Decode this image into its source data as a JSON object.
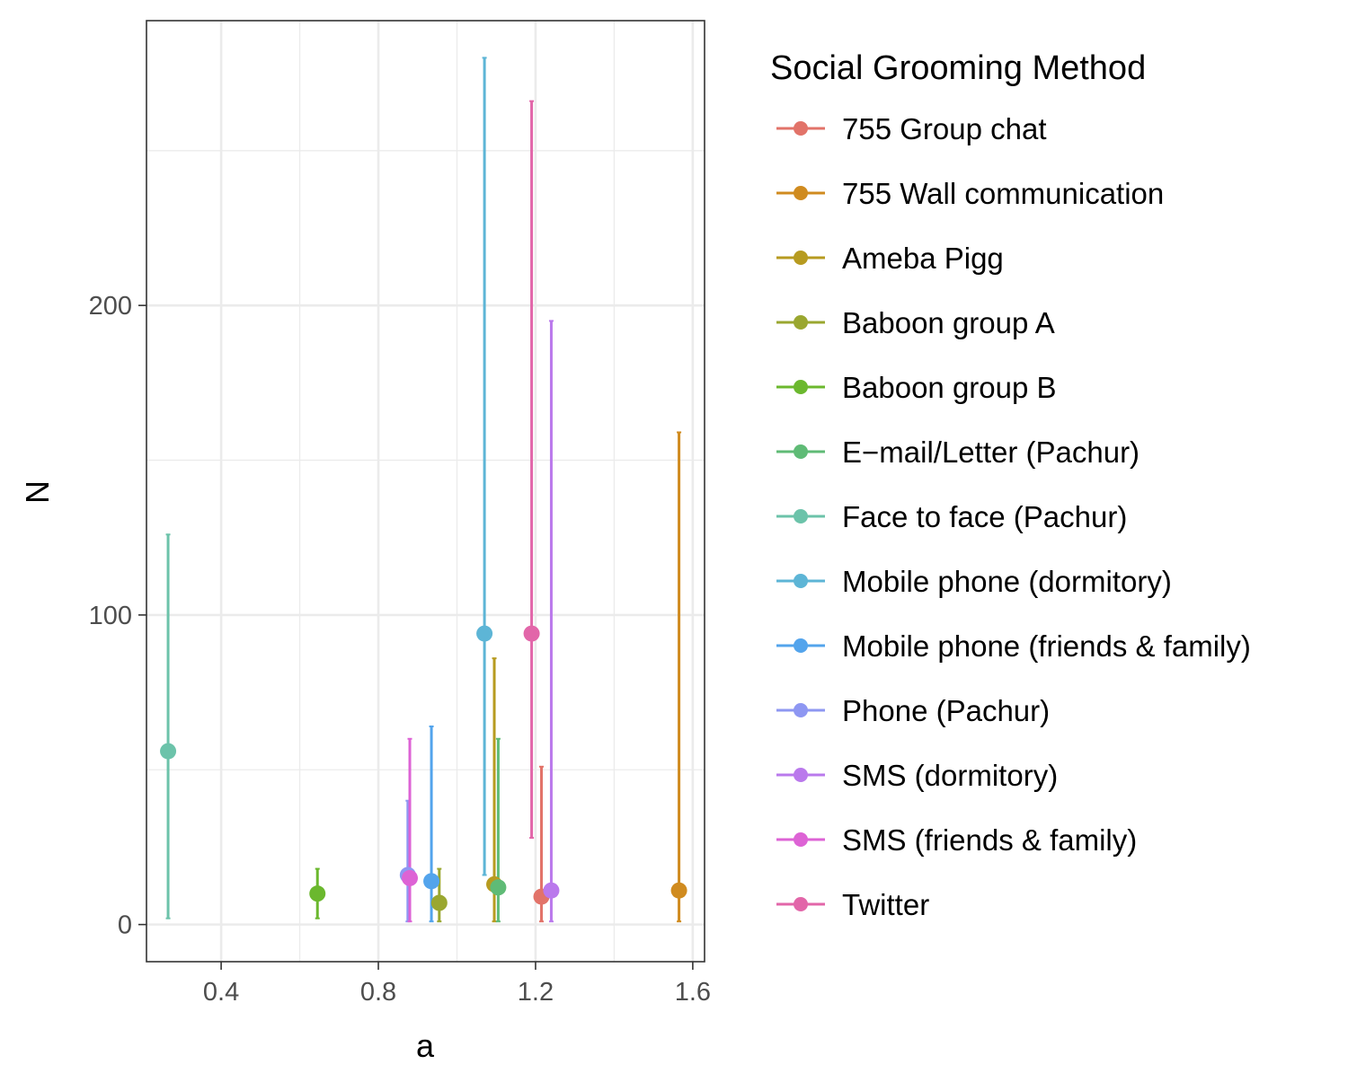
{
  "chart_data": {
    "type": "scatter",
    "subtype": "point-with-error-bars",
    "xlabel": "a",
    "ylabel": "N",
    "xlim": [
      0.21,
      1.63
    ],
    "ylim": [
      -12,
      292
    ],
    "x_ticks": [
      0.4,
      0.8,
      1.2,
      1.6
    ],
    "x_tick_labels": [
      "0.4",
      "0.8",
      "1.2",
      "1.6"
    ],
    "x_minor_ticks": [
      0.6,
      1.0,
      1.4
    ],
    "y_ticks": [
      0,
      100,
      200
    ],
    "y_tick_labels": [
      "0",
      "100",
      "200"
    ],
    "y_minor_ticks": [
      50,
      150,
      250
    ],
    "grid": true,
    "legend": {
      "title": "Social Grooming Method",
      "placement": "right"
    },
    "series": [
      {
        "name": "755 Group chat",
        "color": "#E27369",
        "x": 1.215,
        "y": 9,
        "ymin": 1,
        "ymax": 51
      },
      {
        "name": "755 Wall communication",
        "color": "#D08B1F",
        "x": 1.565,
        "y": 11,
        "ymin": 1,
        "ymax": 159
      },
      {
        "name": "Ameba Pigg",
        "color": "#B79B20",
        "x": 1.095,
        "y": 13,
        "ymin": 1,
        "ymax": 86
      },
      {
        "name": "Baboon group A",
        "color": "#9AA730",
        "x": 0.955,
        "y": 7,
        "ymin": 1,
        "ymax": 18
      },
      {
        "name": "Baboon group B",
        "color": "#6BB82E",
        "x": 0.645,
        "y": 10,
        "ymin": 2,
        "ymax": 18
      },
      {
        "name": "E−mail/Letter (Pachur)",
        "color": "#5FBB76",
        "x": 1.105,
        "y": 12,
        "ymin": 1,
        "ymax": 60
      },
      {
        "name": "Face to face (Pachur)",
        "color": "#6CC3AA",
        "x": 0.265,
        "y": 56,
        "ymin": 2,
        "ymax": 126
      },
      {
        "name": "Mobile phone (dormitory)",
        "color": "#5DB5D6",
        "x": 1.07,
        "y": 94,
        "ymin": 16,
        "ymax": 280
      },
      {
        "name": "Mobile phone (friends & family)",
        "color": "#53A4EC",
        "x": 0.935,
        "y": 14,
        "ymin": 1,
        "ymax": 64
      },
      {
        "name": "Phone (Pachur)",
        "color": "#8E97F2",
        "x": 0.875,
        "y": 16,
        "ymin": 1,
        "ymax": 40
      },
      {
        "name": "SMS (dormitory)",
        "color": "#BA79EC",
        "x": 1.24,
        "y": 11,
        "ymin": 1,
        "ymax": 195
      },
      {
        "name": "SMS (friends & family)",
        "color": "#DD63D5",
        "x": 0.88,
        "y": 15,
        "ymin": 1,
        "ymax": 60
      },
      {
        "name": "Twitter",
        "color": "#E266A9",
        "x": 1.19,
        "y": 94,
        "ymin": 28,
        "ymax": 266
      }
    ]
  }
}
